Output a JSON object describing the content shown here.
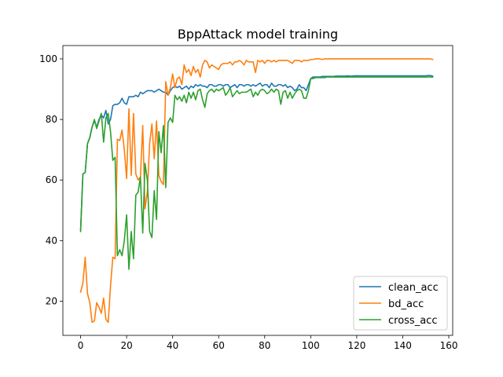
{
  "chart_data": {
    "type": "line",
    "title": "BppAttack model training",
    "xlabel": "",
    "ylabel": "",
    "xlim": [
      -7.7,
      161.7
    ],
    "ylim": [
      8.7,
      104.4
    ],
    "xticks": [
      0,
      20,
      40,
      60,
      80,
      100,
      120,
      140,
      160
    ],
    "yticks": [
      20,
      40,
      60,
      80,
      100
    ],
    "grid": false,
    "legend_position": "lower-right",
    "series": [
      {
        "name": "clean_acc",
        "color": "#1f77b4",
        "x": [
          0,
          1,
          2,
          3,
          4,
          5,
          6,
          7,
          8,
          9,
          10,
          11,
          12,
          13,
          14,
          15,
          16,
          17,
          18,
          19,
          20,
          21,
          22,
          23,
          24,
          25,
          26,
          27,
          28,
          29,
          30,
          31,
          32,
          33,
          34,
          35,
          36,
          37,
          38,
          39,
          40,
          41,
          42,
          43,
          44,
          45,
          46,
          47,
          48,
          49,
          50,
          51,
          52,
          53,
          54,
          55,
          56,
          57,
          58,
          59,
          60,
          61,
          62,
          63,
          64,
          65,
          66,
          67,
          68,
          69,
          70,
          71,
          72,
          73,
          74,
          75,
          76,
          77,
          78,
          79,
          80,
          81,
          82,
          83,
          84,
          85,
          86,
          87,
          88,
          89,
          90,
          91,
          92,
          93,
          94,
          95,
          96,
          97,
          98,
          99,
          100,
          101,
          102,
          103,
          104,
          105,
          106,
          107,
          108,
          109,
          110,
          111,
          112,
          113,
          114,
          115,
          116,
          117,
          118,
          119,
          120,
          121,
          122,
          123,
          124,
          125,
          126,
          127,
          128,
          129,
          130,
          131,
          132,
          133,
          134,
          135,
          136,
          137,
          138,
          139,
          140,
          141,
          142,
          143,
          144,
          145,
          146,
          147,
          148,
          149,
          150,
          151,
          152,
          153
        ],
        "values": [
          43.5,
          62.0,
          62.5,
          72.0,
          74.0,
          77.5,
          79.5,
          77.5,
          80.0,
          81.5,
          80.5,
          83.0,
          78.5,
          80.0,
          84.5,
          85.0,
          85.0,
          85.5,
          87.0,
          85.5,
          85.0,
          87.5,
          87.5,
          87.5,
          88.0,
          87.5,
          89.0,
          88.5,
          89.0,
          89.5,
          89.5,
          89.5,
          89.0,
          89.5,
          90.0,
          89.5,
          89.0,
          89.0,
          88.0,
          89.5,
          90.5,
          91.0,
          90.5,
          91.0,
          90.0,
          90.5,
          91.0,
          90.0,
          91.0,
          90.5,
          91.5,
          91.0,
          91.5,
          91.0,
          91.0,
          90.5,
          91.5,
          91.5,
          91.0,
          91.0,
          91.5,
          91.5,
          91.0,
          91.5,
          91.5,
          90.5,
          91.0,
          91.5,
          90.5,
          91.5,
          91.5,
          91.0,
          91.5,
          91.5,
          91.0,
          91.5,
          91.0,
          91.5,
          92.0,
          91.0,
          91.5,
          91.5,
          90.5,
          92.0,
          91.0,
          91.0,
          91.5,
          91.5,
          91.0,
          91.5,
          90.5,
          91.0,
          90.5,
          89.5,
          90.0,
          91.5,
          90.5,
          90.5,
          89.5,
          91.5,
          93.5,
          94.0,
          94.0,
          94.0,
          94.0,
          94.2,
          94.2,
          94.2,
          94.2,
          94.2,
          94.2,
          94.3,
          94.3,
          94.3,
          94.3,
          94.3,
          94.4,
          94.3,
          94.3,
          94.4,
          94.4,
          94.4,
          94.4,
          94.4,
          94.4,
          94.4,
          94.4,
          94.4,
          94.4,
          94.4,
          94.4,
          94.4,
          94.4,
          94.4,
          94.4,
          94.4,
          94.4,
          94.4,
          94.4,
          94.4,
          94.4,
          94.4,
          94.4,
          94.4,
          94.4,
          94.4,
          94.4,
          94.4,
          94.4,
          94.4,
          94.4,
          94.5,
          94.5,
          94.3
        ]
      },
      {
        "name": "bd_acc",
        "color": "#ff7f0e",
        "x": [
          0,
          1,
          2,
          3,
          4,
          5,
          6,
          7,
          8,
          9,
          10,
          11,
          12,
          13,
          14,
          15,
          16,
          17,
          18,
          19,
          20,
          21,
          22,
          23,
          24,
          25,
          26,
          27,
          28,
          29,
          30,
          31,
          32,
          33,
          34,
          35,
          36,
          37,
          38,
          39,
          40,
          41,
          42,
          43,
          44,
          45,
          46,
          47,
          48,
          49,
          50,
          51,
          52,
          53,
          54,
          55,
          56,
          57,
          58,
          59,
          60,
          61,
          62,
          63,
          64,
          65,
          66,
          67,
          68,
          69,
          70,
          71,
          72,
          73,
          74,
          75,
          76,
          77,
          78,
          79,
          80,
          81,
          82,
          83,
          84,
          85,
          86,
          87,
          88,
          89,
          90,
          91,
          92,
          93,
          94,
          95,
          96,
          97,
          98,
          99,
          100,
          101,
          102,
          103,
          104,
          105,
          106,
          107,
          108,
          109,
          110,
          111,
          112,
          113,
          114,
          115,
          116,
          117,
          118,
          119,
          120,
          121,
          122,
          123,
          124,
          125,
          126,
          127,
          128,
          129,
          130,
          131,
          132,
          133,
          134,
          135,
          136,
          137,
          138,
          139,
          140,
          141,
          142,
          143,
          144,
          145,
          146,
          147,
          148,
          149,
          150,
          151,
          152,
          153
        ],
        "values": [
          23.0,
          26.0,
          34.5,
          22.5,
          19.5,
          13.0,
          13.5,
          19.5,
          18.0,
          16.0,
          21.0,
          14.0,
          13.0,
          25.0,
          34.5,
          34.0,
          73.5,
          73.0,
          76.5,
          70.0,
          60.5,
          83.5,
          61.5,
          82.0,
          62.0,
          60.0,
          61.0,
          78.0,
          50.5,
          56.0,
          72.0,
          78.5,
          67.0,
          79.5,
          61.5,
          59.5,
          58.5,
          92.5,
          88.0,
          90.5,
          95.0,
          90.5,
          93.5,
          94.0,
          91.5,
          98.0,
          95.5,
          96.5,
          94.5,
          97.5,
          95.5,
          96.5,
          94.0,
          98.0,
          99.5,
          99.0,
          97.0,
          98.0,
          97.5,
          97.0,
          96.5,
          98.0,
          98.5,
          98.5,
          98.5,
          99.0,
          98.0,
          99.0,
          99.0,
          99.5,
          99.0,
          98.0,
          99.5,
          99.0,
          99.0,
          99.0,
          95.5,
          99.5,
          99.0,
          99.5,
          98.5,
          99.5,
          99.5,
          99.0,
          99.5,
          99.0,
          99.5,
          99.5,
          99.5,
          99.5,
          99.5,
          99.0,
          98.5,
          99.5,
          99.5,
          99.5,
          99.0,
          99.5,
          99.5,
          99.5,
          99.8,
          99.8,
          100.0,
          100.0,
          100.0,
          99.8,
          100.0,
          100.0,
          100.0,
          100.0,
          100.0,
          100.0,
          100.0,
          100.0,
          100.0,
          100.0,
          100.0,
          100.0,
          100.0,
          100.0,
          100.0,
          100.0,
          100.0,
          100.0,
          100.0,
          100.0,
          100.0,
          100.0,
          100.0,
          100.0,
          100.0,
          100.0,
          100.0,
          100.0,
          100.0,
          100.0,
          100.0,
          100.0,
          100.0,
          100.0,
          100.0,
          100.0,
          100.0,
          100.0,
          100.0,
          100.0,
          100.0,
          100.0,
          100.0,
          100.0,
          100.0,
          100.0,
          100.0,
          99.8
        ]
      },
      {
        "name": "cross_acc",
        "color": "#2ca02c",
        "x": [
          0,
          1,
          2,
          3,
          4,
          5,
          6,
          7,
          8,
          9,
          10,
          11,
          12,
          13,
          14,
          15,
          16,
          17,
          18,
          19,
          20,
          21,
          22,
          23,
          24,
          25,
          26,
          27,
          28,
          29,
          30,
          31,
          32,
          33,
          34,
          35,
          36,
          37,
          38,
          39,
          40,
          41,
          42,
          43,
          44,
          45,
          46,
          47,
          48,
          49,
          50,
          51,
          52,
          53,
          54,
          55,
          56,
          57,
          58,
          59,
          60,
          61,
          62,
          63,
          64,
          65,
          66,
          67,
          68,
          69,
          70,
          71,
          72,
          73,
          74,
          75,
          76,
          77,
          78,
          79,
          80,
          81,
          82,
          83,
          84,
          85,
          86,
          87,
          88,
          89,
          90,
          91,
          92,
          93,
          94,
          95,
          96,
          97,
          98,
          99,
          100,
          101,
          102,
          103,
          104,
          105,
          106,
          107,
          108,
          109,
          110,
          111,
          112,
          113,
          114,
          115,
          116,
          117,
          118,
          119,
          120,
          121,
          122,
          123,
          124,
          125,
          126,
          127,
          128,
          129,
          130,
          131,
          132,
          133,
          134,
          135,
          136,
          137,
          138,
          139,
          140,
          141,
          142,
          143,
          144,
          145,
          146,
          147,
          148,
          149,
          150,
          151,
          152,
          153
        ],
        "values": [
          43.0,
          62.0,
          62.5,
          72.0,
          74.0,
          77.5,
          80.0,
          77.0,
          79.5,
          82.0,
          72.5,
          80.5,
          82.0,
          76.0,
          66.5,
          67.5,
          35.0,
          37.0,
          35.0,
          40.0,
          48.5,
          30.5,
          43.0,
          34.0,
          55.0,
          56.0,
          61.0,
          42.5,
          65.5,
          60.0,
          43.0,
          41.0,
          56.5,
          47.0,
          76.0,
          69.0,
          78.0,
          57.5,
          79.0,
          80.5,
          79.0,
          88.0,
          86.5,
          87.5,
          86.0,
          88.0,
          85.5,
          89.0,
          87.0,
          89.0,
          86.5,
          89.5,
          90.0,
          86.5,
          84.0,
          88.5,
          89.5,
          90.0,
          89.0,
          90.0,
          89.5,
          90.0,
          90.5,
          88.0,
          89.0,
          90.5,
          87.5,
          88.5,
          89.5,
          88.5,
          89.0,
          89.0,
          89.0,
          89.5,
          90.0,
          87.5,
          89.0,
          88.0,
          89.5,
          90.0,
          89.5,
          88.5,
          89.0,
          90.0,
          89.0,
          90.0,
          89.5,
          85.0,
          89.0,
          89.5,
          87.0,
          89.0,
          87.0,
          88.5,
          89.5,
          90.0,
          89.5,
          87.0,
          87.0,
          89.5,
          93.5,
          93.5,
          93.8,
          93.8,
          93.8,
          93.8,
          93.8,
          94.0,
          94.0,
          94.0,
          94.0,
          94.0,
          94.0,
          94.0,
          94.0,
          94.0,
          94.0,
          94.0,
          94.0,
          94.0,
          94.0,
          94.0,
          94.0,
          94.0,
          94.0,
          94.0,
          94.0,
          94.0,
          94.0,
          94.0,
          94.0,
          94.0,
          94.0,
          94.0,
          94.0,
          94.0,
          94.0,
          94.0,
          94.0,
          94.0,
          94.0,
          94.0,
          94.0,
          94.0,
          94.0,
          94.0,
          94.0,
          94.0,
          94.0,
          94.0,
          94.0,
          94.0,
          94.0,
          94.0
        ]
      }
    ]
  }
}
